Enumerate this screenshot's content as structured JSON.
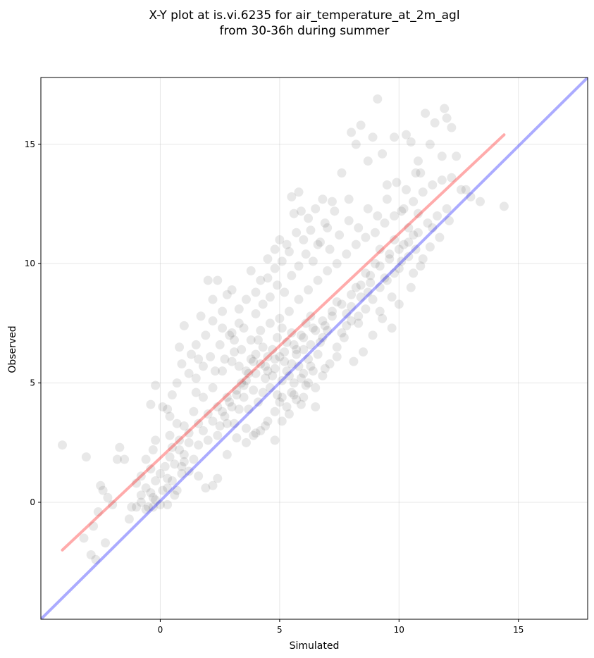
{
  "chart_data": {
    "type": "scatter",
    "title_lines": [
      "X-Y plot at is.vi.6235 for air_temperature_at_2m_agl",
      "from 30-36h during summer"
    ],
    "xlabel": "Simulated",
    "ylabel": "Observed",
    "xlim": [
      -5.0,
      17.9
    ],
    "ylim": [
      -4.9,
      17.8
    ],
    "xticks": [
      0,
      5,
      10,
      15
    ],
    "yticks": [
      0,
      5,
      10,
      15
    ],
    "grid": true,
    "point_color": "#000000",
    "point_opacity": 0.09,
    "lines": [
      {
        "kind": "one-to-one",
        "color": "#0000ff",
        "opacity": 0.33,
        "x": [
          -5.0,
          17.9
        ],
        "y": [
          -4.9,
          17.8
        ]
      },
      {
        "kind": "fit",
        "color": "#ff0000",
        "opacity": 0.33,
        "x": [
          -4.1,
          14.4
        ],
        "y": [
          -2.0,
          15.4
        ]
      }
    ],
    "points": [
      [
        -4.1,
        2.4
      ],
      [
        -3.1,
        1.9
      ],
      [
        -2.9,
        -2.2
      ],
      [
        -2.7,
        -2.4
      ],
      [
        -2.3,
        -1.7
      ],
      [
        -3.2,
        -1.5
      ],
      [
        -2.8,
        -1.0
      ],
      [
        -2.5,
        0.7
      ],
      [
        -2.4,
        0.5
      ],
      [
        -2.2,
        0.2
      ],
      [
        -2.0,
        -0.1
      ],
      [
        -2.6,
        -0.4
      ],
      [
        -1.8,
        1.8
      ],
      [
        -1.7,
        2.3
      ],
      [
        -1.5,
        1.8
      ],
      [
        -1.2,
        -0.2
      ],
      [
        -1.3,
        -0.7
      ],
      [
        -1.0,
        0.8
      ],
      [
        -0.8,
        0.3
      ],
      [
        -0.6,
        1.8
      ],
      [
        -0.5,
        -0.2
      ],
      [
        -0.3,
        -0.2
      ],
      [
        -0.2,
        2.6
      ],
      [
        -0.4,
        4.1
      ],
      [
        -0.3,
        2.2
      ],
      [
        -0.2,
        4.9
      ],
      [
        0.1,
        4.0
      ],
      [
        0.4,
        3.6
      ],
      [
        0.7,
        3.3
      ],
      [
        0.3,
        1.0
      ],
      [
        0.8,
        6.5
      ],
      [
        1.0,
        7.4
      ],
      [
        1.2,
        5.4
      ],
      [
        1.5,
        4.6
      ],
      [
        1.7,
        7.8
      ],
      [
        1.6,
        6.0
      ],
      [
        2.0,
        9.3
      ],
      [
        2.2,
        8.5
      ],
      [
        2.4,
        9.3
      ],
      [
        2.6,
        7.3
      ],
      [
        2.8,
        8.7
      ],
      [
        3.0,
        7.1
      ],
      [
        3.3,
        8.1
      ],
      [
        3.6,
        8.5
      ],
      [
        3.8,
        9.7
      ],
      [
        4.0,
        8.8
      ],
      [
        4.2,
        9.3
      ],
      [
        4.5,
        10.2
      ],
      [
        4.8,
        9.8
      ],
      [
        5.0,
        11.0
      ],
      [
        5.3,
        10.8
      ],
      [
        5.5,
        12.8
      ],
      [
        5.6,
        12.1
      ],
      [
        5.8,
        13.0
      ],
      [
        5.9,
        12.2
      ],
      [
        6.2,
        11.9
      ],
      [
        6.5,
        12.3
      ],
      [
        6.8,
        12.7
      ],
      [
        7.0,
        11.5
      ],
      [
        7.3,
        12.2
      ],
      [
        7.6,
        13.8
      ],
      [
        7.9,
        12.7
      ],
      [
        8.0,
        15.5
      ],
      [
        8.2,
        15.0
      ],
      [
        8.4,
        15.8
      ],
      [
        8.7,
        14.3
      ],
      [
        8.9,
        15.3
      ],
      [
        9.1,
        16.9
      ],
      [
        9.3,
        14.6
      ],
      [
        9.5,
        13.3
      ],
      [
        9.8,
        15.3
      ],
      [
        10.1,
        12.2
      ],
      [
        10.3,
        15.4
      ],
      [
        10.5,
        15.1
      ],
      [
        10.8,
        14.3
      ],
      [
        10.9,
        13.8
      ],
      [
        11.1,
        16.3
      ],
      [
        11.3,
        15.0
      ],
      [
        11.5,
        15.9
      ],
      [
        11.8,
        14.5
      ],
      [
        11.9,
        16.5
      ],
      [
        12.0,
        16.1
      ],
      [
        12.2,
        15.7
      ],
      [
        12.4,
        14.5
      ],
      [
        12.6,
        13.1
      ],
      [
        12.8,
        13.1
      ],
      [
        13.0,
        12.8
      ],
      [
        13.4,
        12.6
      ],
      [
        14.4,
        12.4
      ],
      [
        11.4,
        11.5
      ],
      [
        11.0,
        10.2
      ],
      [
        10.6,
        9.6
      ],
      [
        10.0,
        8.3
      ],
      [
        9.7,
        7.3
      ],
      [
        9.2,
        8.0
      ],
      [
        8.7,
        8.8
      ],
      [
        8.3,
        7.5
      ],
      [
        7.8,
        7.4
      ],
      [
        7.4,
        6.1
      ],
      [
        6.9,
        5.6
      ],
      [
        6.5,
        4.0
      ],
      [
        6.0,
        4.4
      ],
      [
        5.5,
        4.6
      ],
      [
        5.1,
        3.4
      ],
      [
        4.8,
        2.6
      ],
      [
        4.4,
        3.2
      ],
      [
        4.0,
        2.9
      ],
      [
        3.6,
        3.1
      ],
      [
        3.2,
        2.7
      ],
      [
        2.8,
        2.0
      ],
      [
        2.4,
        1.0
      ],
      [
        2.2,
        0.7
      ],
      [
        1.9,
        0.6
      ],
      [
        1.6,
        1.1
      ],
      [
        1.2,
        1.3
      ],
      [
        0.9,
        1.2
      ],
      [
        0.6,
        0.3
      ],
      [
        0.3,
        0.6
      ],
      [
        0.0,
        -0.1
      ],
      [
        -0.3,
        0.2
      ],
      [
        0.5,
        2.3
      ],
      [
        1.0,
        3.2
      ],
      [
        1.4,
        3.8
      ],
      [
        1.8,
        4.4
      ],
      [
        2.2,
        4.8
      ],
      [
        2.6,
        5.5
      ],
      [
        3.0,
        5.9
      ],
      [
        3.4,
        6.4
      ],
      [
        3.8,
        6.8
      ],
      [
        4.2,
        7.2
      ],
      [
        4.6,
        7.5
      ],
      [
        5.0,
        7.7
      ],
      [
        5.4,
        8.0
      ],
      [
        5.8,
        8.5
      ],
      [
        6.2,
        8.9
      ],
      [
        6.6,
        9.3
      ],
      [
        7.0,
        9.7
      ],
      [
        7.4,
        10.0
      ],
      [
        7.8,
        10.4
      ],
      [
        8.2,
        10.8
      ],
      [
        8.6,
        11.1
      ],
      [
        9.0,
        11.3
      ],
      [
        9.4,
        11.7
      ],
      [
        9.8,
        12.0
      ],
      [
        10.2,
        12.3
      ],
      [
        10.6,
        12.6
      ],
      [
        11.0,
        13.0
      ],
      [
        11.4,
        13.3
      ],
      [
        11.8,
        13.5
      ],
      [
        12.2,
        13.6
      ],
      [
        0.4,
        2.8
      ],
      [
        0.8,
        2.6
      ],
      [
        1.2,
        2.9
      ],
      [
        1.6,
        3.3
      ],
      [
        2.0,
        3.7
      ],
      [
        2.4,
        4.0
      ],
      [
        2.8,
        4.4
      ],
      [
        3.2,
        4.7
      ],
      [
        3.6,
        5.1
      ],
      [
        4.0,
        5.4
      ],
      [
        4.4,
        5.7
      ],
      [
        4.8,
        6.0
      ],
      [
        5.2,
        6.3
      ],
      [
        5.6,
        6.6
      ],
      [
        6.0,
        6.9
      ],
      [
        6.4,
        7.3
      ],
      [
        6.8,
        7.6
      ],
      [
        7.2,
        8.0
      ],
      [
        7.6,
        8.3
      ],
      [
        8.0,
        8.7
      ],
      [
        8.4,
        9.1
      ],
      [
        8.8,
        9.5
      ],
      [
        9.2,
        9.9
      ],
      [
        9.6,
        10.2
      ],
      [
        10.0,
        10.6
      ],
      [
        10.4,
        10.9
      ],
      [
        10.8,
        11.3
      ],
      [
        11.2,
        11.7
      ],
      [
        11.6,
        12.0
      ],
      [
        12.0,
        12.3
      ],
      [
        3.0,
        4.0
      ],
      [
        3.2,
        4.5
      ],
      [
        3.4,
        5.0
      ],
      [
        3.6,
        5.5
      ],
      [
        3.8,
        6.0
      ],
      [
        4.0,
        6.2
      ],
      [
        4.2,
        5.8
      ],
      [
        4.4,
        5.2
      ],
      [
        4.6,
        4.8
      ],
      [
        4.8,
        5.6
      ],
      [
        5.0,
        6.1
      ],
      [
        5.2,
        5.9
      ],
      [
        5.4,
        5.3
      ],
      [
        5.6,
        5.0
      ],
      [
        5.8,
        5.7
      ],
      [
        6.0,
        6.4
      ],
      [
        6.2,
        6.0
      ],
      [
        6.4,
        5.5
      ],
      [
        6.6,
        6.2
      ],
      [
        6.8,
        6.9
      ],
      [
        3.1,
        6.3
      ],
      [
        3.3,
        5.7
      ],
      [
        3.5,
        4.4
      ],
      [
        3.7,
        3.9
      ],
      [
        3.9,
        4.7
      ],
      [
        4.1,
        6.8
      ],
      [
        4.3,
        6.5
      ],
      [
        4.5,
        6.1
      ],
      [
        4.7,
        5.3
      ],
      [
        4.9,
        4.5
      ],
      [
        5.1,
        5.1
      ],
      [
        5.3,
        6.7
      ],
      [
        5.5,
        7.1
      ],
      [
        5.7,
        6.4
      ],
      [
        5.9,
        5.2
      ],
      [
        6.1,
        4.9
      ],
      [
        6.3,
        6.6
      ],
      [
        6.5,
        7.2
      ],
      [
        6.7,
        6.7
      ],
      [
        6.9,
        7.4
      ],
      [
        2.5,
        3.2
      ],
      [
        2.7,
        3.6
      ],
      [
        2.9,
        4.2
      ],
      [
        3.1,
        3.3
      ],
      [
        3.3,
        3.9
      ],
      [
        3.5,
        4.9
      ],
      [
        3.7,
        5.4
      ],
      [
        3.9,
        5.9
      ],
      [
        4.1,
        4.2
      ],
      [
        4.3,
        4.6
      ],
      [
        4.5,
        5.5
      ],
      [
        4.7,
        6.4
      ],
      [
        4.9,
        6.9
      ],
      [
        5.1,
        7.3
      ],
      [
        5.3,
        5.5
      ],
      [
        5.5,
        5.8
      ],
      [
        5.7,
        6.2
      ],
      [
        5.9,
        7.0
      ],
      [
        6.1,
        7.5
      ],
      [
        6.3,
        7.8
      ],
      [
        7.0,
        7.2
      ],
      [
        7.2,
        7.8
      ],
      [
        7.4,
        8.4
      ],
      [
        7.6,
        7.1
      ],
      [
        7.8,
        7.9
      ],
      [
        8.0,
        8.2
      ],
      [
        8.2,
        9.0
      ],
      [
        8.4,
        8.6
      ],
      [
        8.6,
        9.6
      ],
      [
        8.8,
        9.2
      ],
      [
        9.0,
        10.0
      ],
      [
        9.2,
        10.6
      ],
      [
        9.4,
        9.4
      ],
      [
        9.6,
        10.4
      ],
      [
        9.8,
        11.0
      ],
      [
        10.0,
        9.8
      ],
      [
        10.2,
        10.8
      ],
      [
        10.4,
        11.5
      ],
      [
        10.6,
        11.2
      ],
      [
        10.8,
        12.1
      ],
      [
        1.0,
        2.0
      ],
      [
        1.2,
        2.5
      ],
      [
        1.4,
        1.8
      ],
      [
        1.6,
        2.4
      ],
      [
        1.8,
        3.0
      ],
      [
        2.0,
        2.6
      ],
      [
        2.2,
        3.4
      ],
      [
        2.4,
        2.8
      ],
      [
        2.6,
        3.8
      ],
      [
        2.8,
        3.3
      ],
      [
        0.2,
        1.5
      ],
      [
        0.4,
        1.9
      ],
      [
        0.6,
        1.6
      ],
      [
        0.8,
        2.2
      ],
      [
        1.0,
        1.7
      ],
      [
        0.0,
        1.2
      ],
      [
        -0.2,
        0.9
      ],
      [
        -0.4,
        1.4
      ],
      [
        -0.6,
        0.6
      ],
      [
        -0.8,
        1.1
      ],
      [
        1.5,
        5.2
      ],
      [
        1.8,
        5.7
      ],
      [
        2.1,
        6.1
      ],
      [
        2.3,
        5.5
      ],
      [
        2.5,
        6.6
      ],
      [
        2.7,
        6.0
      ],
      [
        2.9,
        7.0
      ],
      [
        3.1,
        6.8
      ],
      [
        3.3,
        7.5
      ],
      [
        3.5,
        7.3
      ],
      [
        4.0,
        7.9
      ],
      [
        4.3,
        8.3
      ],
      [
        4.6,
        8.6
      ],
      [
        4.9,
        9.1
      ],
      [
        5.2,
        8.8
      ],
      [
        5.5,
        9.5
      ],
      [
        5.8,
        9.9
      ],
      [
        6.1,
        10.4
      ],
      [
        6.4,
        10.1
      ],
      [
        6.7,
        10.9
      ],
      [
        7.1,
        10.6
      ],
      [
        7.5,
        11.2
      ],
      [
        7.9,
        11.8
      ],
      [
        8.3,
        11.5
      ],
      [
        8.7,
        12.3
      ],
      [
        9.1,
        12.0
      ],
      [
        9.5,
        12.7
      ],
      [
        9.9,
        13.4
      ],
      [
        10.3,
        13.1
      ],
      [
        10.7,
        13.8
      ],
      [
        5.0,
        4.2
      ],
      [
        5.3,
        4.0
      ],
      [
        5.6,
        4.5
      ],
      [
        5.9,
        4.1
      ],
      [
        6.2,
        5.0
      ],
      [
        6.5,
        4.8
      ],
      [
        6.8,
        5.3
      ],
      [
        7.1,
        5.8
      ],
      [
        7.4,
        6.5
      ],
      [
        7.7,
        6.9
      ],
      [
        8.0,
        7.6
      ],
      [
        8.3,
        7.8
      ],
      [
        8.6,
        8.1
      ],
      [
        8.9,
        8.5
      ],
      [
        9.2,
        9.0
      ],
      [
        9.5,
        9.3
      ],
      [
        9.8,
        9.6
      ],
      [
        10.1,
        10.1
      ],
      [
        10.4,
        10.3
      ],
      [
        10.7,
        10.6
      ],
      [
        -1.0,
        -0.2
      ],
      [
        -0.8,
        0.0
      ],
      [
        -0.6,
        -0.3
      ],
      [
        -0.4,
        0.4
      ],
      [
        -0.2,
        0.1
      ],
      [
        0.1,
        0.5
      ],
      [
        0.3,
        -0.1
      ],
      [
        0.5,
        0.9
      ],
      [
        0.7,
        0.5
      ],
      [
        0.9,
        1.5
      ],
      [
        3.6,
        2.5
      ],
      [
        3.9,
        2.8
      ],
      [
        4.2,
        3.0
      ],
      [
        4.5,
        3.4
      ],
      [
        4.8,
        3.8
      ],
      [
        5.1,
        4.4
      ],
      [
        5.4,
        3.7
      ],
      [
        5.7,
        4.3
      ],
      [
        6.0,
        5.4
      ],
      [
        6.3,
        5.7
      ],
      [
        3.0,
        8.9
      ],
      [
        2.6,
        8.0
      ],
      [
        2.2,
        7.6
      ],
      [
        1.9,
        7.0
      ],
      [
        1.5,
        6.6
      ],
      [
        1.3,
        6.2
      ],
      [
        0.9,
        5.8
      ],
      [
        0.7,
        5.0
      ],
      [
        0.5,
        4.5
      ],
      [
        0.3,
        3.9
      ],
      [
        6.0,
        11.0
      ],
      [
        6.3,
        11.4
      ],
      [
        6.6,
        10.8
      ],
      [
        6.9,
        11.7
      ],
      [
        7.2,
        12.6
      ],
      [
        5.7,
        11.3
      ],
      [
        5.4,
        10.5
      ],
      [
        5.1,
        10.1
      ],
      [
        4.8,
        10.6
      ],
      [
        4.5,
        9.4
      ],
      [
        8.1,
        5.9
      ],
      [
        8.5,
        6.3
      ],
      [
        8.9,
        7.0
      ],
      [
        9.3,
        7.7
      ],
      [
        9.7,
        8.6
      ],
      [
        10.5,
        9.0
      ],
      [
        10.9,
        9.9
      ],
      [
        11.3,
        10.7
      ],
      [
        11.7,
        11.1
      ],
      [
        12.1,
        11.8
      ]
    ]
  }
}
